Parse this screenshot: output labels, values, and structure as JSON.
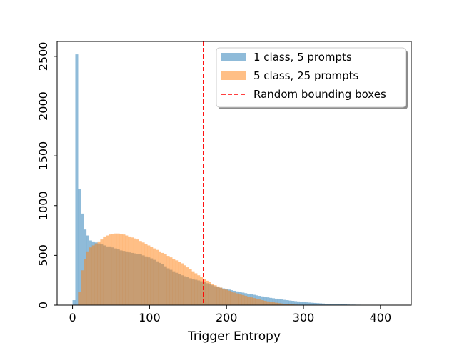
{
  "chart_data": {
    "type": "histogram",
    "title": "",
    "xlabel": "Trigger Entropy",
    "ylabel": "",
    "xlim": [
      -20,
      440
    ],
    "ylim": [
      0,
      2650
    ],
    "x_ticks": [
      0,
      100,
      200,
      300,
      400
    ],
    "y_ticks": [
      0,
      500,
      1000,
      1500,
      2000,
      2500
    ],
    "grid": false,
    "legend_position": "top-right",
    "bin_start": 0,
    "bin_width": 3.6,
    "series": [
      {
        "name": "1 class, 5 prompts",
        "color": "#1f77b4",
        "opacity": 0.5,
        "values": [
          50,
          2520,
          1170,
          920,
          760,
          700,
          650,
          640,
          630,
          620,
          610,
          600,
          590,
          590,
          580,
          570,
          560,
          550,
          545,
          540,
          530,
          525,
          520,
          515,
          510,
          500,
          490,
          480,
          470,
          455,
          440,
          425,
          410,
          390,
          370,
          355,
          340,
          325,
          310,
          300,
          290,
          280,
          270,
          262,
          255,
          248,
          240,
          230,
          220,
          210,
          200,
          190,
          182,
          175,
          168,
          162,
          156,
          150,
          144,
          138,
          132,
          126,
          120,
          115,
          110,
          104,
          98,
          93,
          88,
          83,
          78,
          73,
          69,
          65,
          61,
          57,
          53,
          50,
          46,
          43,
          40,
          37,
          34,
          31,
          28,
          26,
          24,
          22,
          20,
          18,
          16,
          14,
          13,
          12,
          11,
          10,
          9,
          8,
          7,
          6,
          5,
          5,
          4,
          4,
          3,
          3,
          2,
          2,
          2,
          1,
          1,
          1
        ]
      },
      {
        "name": "5 class, 25 prompts",
        "color": "#ff7f0e",
        "opacity": 0.5,
        "values": [
          0,
          0,
          130,
          350,
          460,
          540,
          580,
          600,
          620,
          640,
          660,
          690,
          700,
          710,
          715,
          720,
          720,
          715,
          710,
          700,
          690,
          680,
          670,
          660,
          645,
          630,
          615,
          600,
          585,
          570,
          555,
          540,
          525,
          510,
          495,
          480,
          465,
          450,
          435,
          420,
          400,
          380,
          360,
          340,
          320,
          300,
          280,
          262,
          245,
          230,
          215,
          200,
          188,
          176,
          165,
          155,
          145,
          135,
          126,
          118,
          110,
          102,
          94,
          86,
          78,
          71,
          64,
          57,
          50,
          44,
          38,
          33,
          28,
          24,
          20,
          17,
          14,
          11,
          9,
          7,
          5,
          4,
          3,
          2,
          1,
          1
        ]
      },
      {
        "name": "Random bounding boxes",
        "type": "vline",
        "x": 170,
        "color": "#ff0000",
        "linestyle": "dashed"
      }
    ]
  }
}
